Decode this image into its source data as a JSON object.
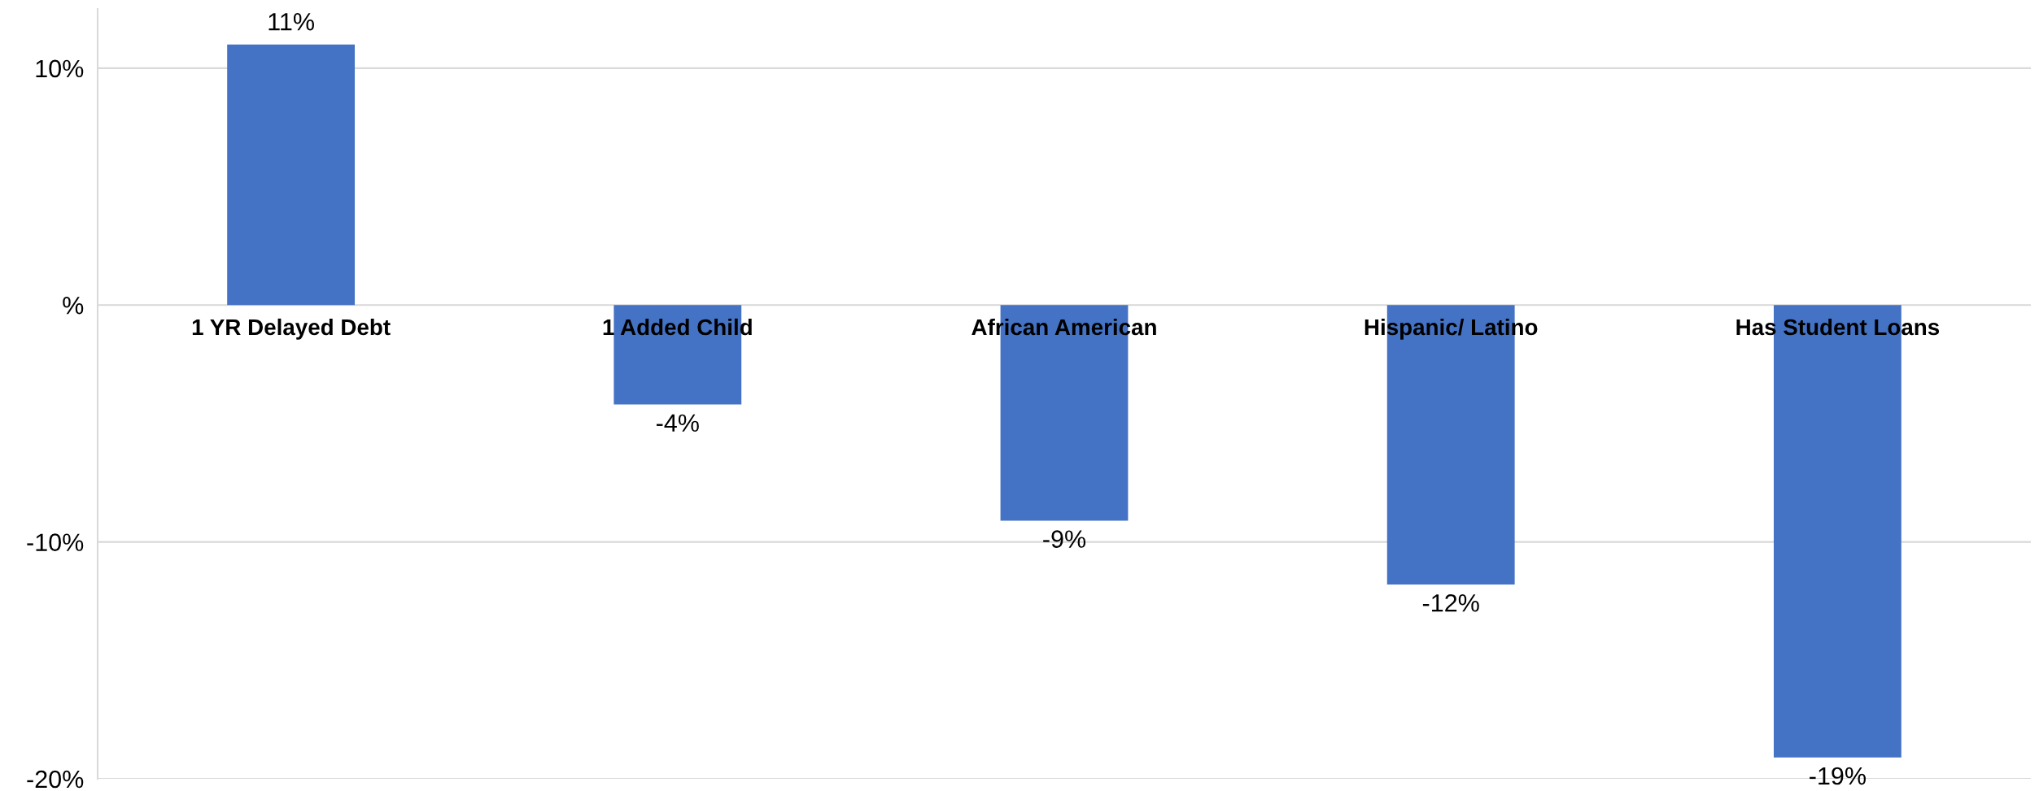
{
  "chart_data": {
    "type": "bar",
    "categories": [
      "1 YR Delayed Debt",
      "1 Added Child",
      "African American",
      "Hispanic/ Latino",
      "Has Student Loans"
    ],
    "values": [
      11,
      -4.2,
      -9.1,
      -11.8,
      -19.1
    ],
    "value_labels": [
      "11%",
      "-4%",
      "-9%",
      "-12%",
      "-19%"
    ],
    "color": "#4472c4",
    "ylim": [
      -20,
      12.5
    ],
    "yticks": [
      {
        "value": -20,
        "label": "-20%"
      },
      {
        "value": -10,
        "label": "-10%"
      },
      {
        "value": 0,
        "label": "%"
      },
      {
        "value": 10,
        "label": "10%"
      }
    ],
    "grid": "y",
    "legend": false
  }
}
